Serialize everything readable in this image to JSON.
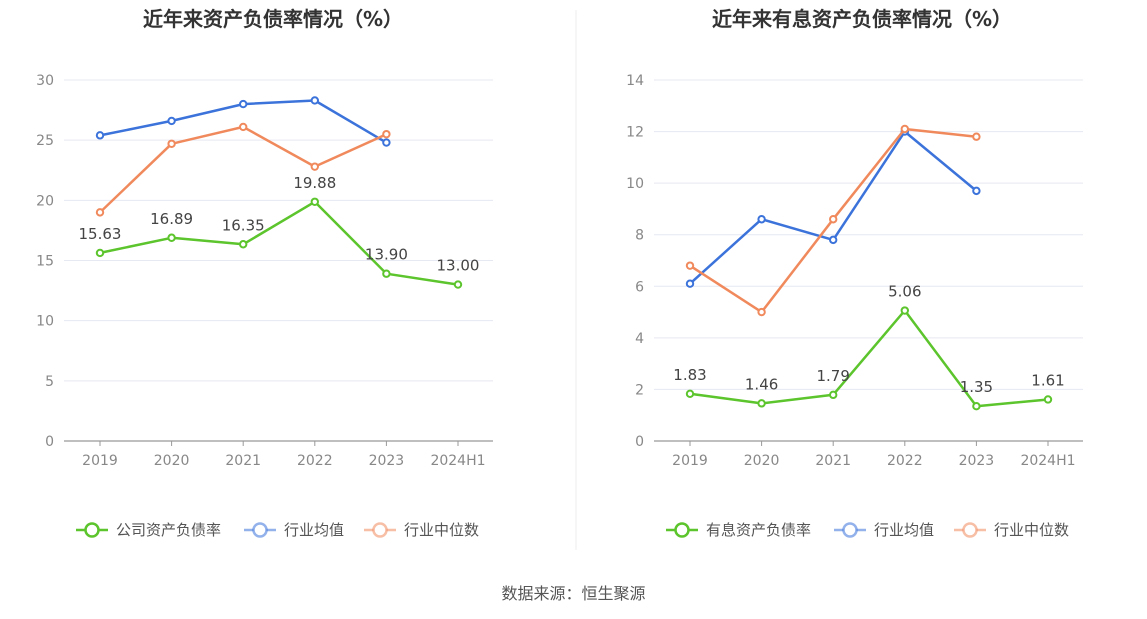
{
  "colors": {
    "green": "#5cc42c",
    "blue": "#3b73db",
    "orange": "#f08a5d",
    "grid": "#e6e8f2",
    "axis": "#999999",
    "divider": "#eeeeee"
  },
  "chart_data": [
    {
      "type": "line",
      "title": "近年来资产负债率情况（%）",
      "categories": [
        "2019",
        "2020",
        "2021",
        "2022",
        "2023",
        "2024H1"
      ],
      "ylim": [
        0,
        30
      ],
      "yticks": [
        0,
        5,
        10,
        15,
        20,
        25,
        30
      ],
      "grid": true,
      "legend_position": "bottom",
      "series": [
        {
          "name": "公司资产负债率",
          "color": "green",
          "labeled": true,
          "values": [
            15.63,
            16.89,
            16.35,
            19.88,
            13.9,
            13.0
          ],
          "labels": [
            "15.63",
            "16.89",
            "16.35",
            "19.88",
            "13.90",
            "13.00"
          ]
        },
        {
          "name": "行业均值",
          "color": "blue",
          "labeled": false,
          "values": [
            25.4,
            26.6,
            28.0,
            28.3,
            24.8,
            null
          ]
        },
        {
          "name": "行业中位数",
          "color": "orange",
          "labeled": false,
          "values": [
            19.0,
            24.7,
            26.1,
            22.8,
            25.5,
            null
          ]
        }
      ]
    },
    {
      "type": "line",
      "title": "近年来有息资产负债率情况（%）",
      "categories": [
        "2019",
        "2020",
        "2021",
        "2022",
        "2023",
        "2024H1"
      ],
      "ylim": [
        0,
        14
      ],
      "yticks": [
        0,
        2,
        4,
        6,
        8,
        10,
        12,
        14
      ],
      "grid": true,
      "legend_position": "bottom",
      "series": [
        {
          "name": "有息资产负债率",
          "color": "green",
          "labeled": true,
          "values": [
            1.83,
            1.46,
            1.79,
            5.06,
            1.35,
            1.61
          ],
          "labels": [
            "1.83",
            "1.46",
            "1.79",
            "5.06",
            "1.35",
            "1.61"
          ]
        },
        {
          "name": "行业均值",
          "color": "blue",
          "labeled": false,
          "values": [
            6.1,
            8.6,
            7.8,
            12.0,
            9.7,
            null
          ]
        },
        {
          "name": "行业中位数",
          "color": "orange",
          "labeled": false,
          "values": [
            6.8,
            5.0,
            8.6,
            12.1,
            11.8,
            null
          ]
        }
      ]
    }
  ],
  "footer": {
    "source": "数据来源：恒生聚源"
  }
}
